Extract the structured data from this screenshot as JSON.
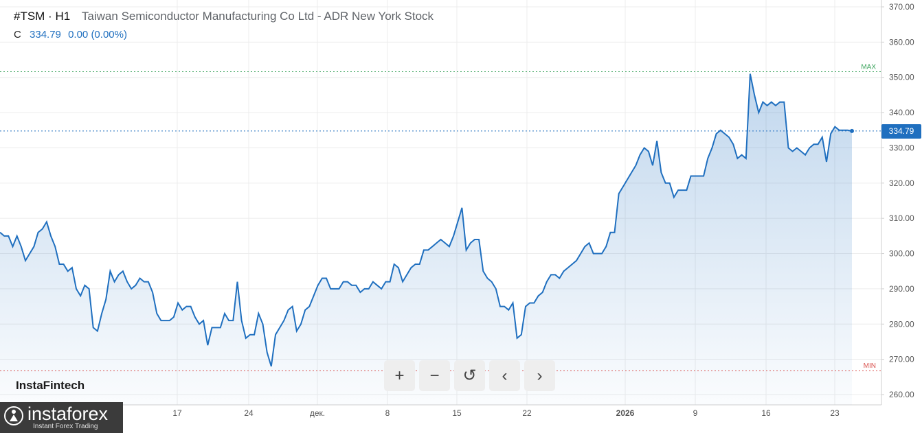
{
  "header": {
    "symbol": "#TSM · H1",
    "name": "Taiwan Semiconductor Manufacturing Co Ltd - ADR New York Stock",
    "close_label": "C",
    "close_value": "334.79",
    "change": "0.00 (0.00%)"
  },
  "brand": "InstaFintech",
  "watermark": {
    "name": "instaforex",
    "tagline": "Instant Forex Trading"
  },
  "controls": {
    "zoom_in": "+",
    "zoom_out": "−",
    "reset": "↺",
    "prev": "‹",
    "next": "›"
  },
  "colors": {
    "line": "#1f6fbf",
    "max": "#3aa35b",
    "min": "#d9534f",
    "grid": "#ececec"
  },
  "chart_data": {
    "type": "area",
    "ylim": [
      260,
      370
    ],
    "yticks": [
      "260.00",
      "270.00",
      "280.00",
      "290.00",
      "300.00",
      "310.00",
      "320.00",
      "330.00",
      "340.00",
      "350.00",
      "360.00",
      "370.00"
    ],
    "xticks": [
      "17",
      "24",
      "дек.",
      "8",
      "15",
      "22",
      "2026",
      "9",
      "16",
      "23"
    ],
    "max_label": "MAX",
    "min_label": "MIN",
    "max_value": 351.6,
    "min_value": 266.8,
    "last_value": 334.79,
    "last_label": "334.79",
    "series": [
      {
        "values": [
          306,
          305,
          305,
          302,
          305,
          302,
          298,
          300,
          302,
          306,
          307,
          309,
          305,
          302,
          297,
          297,
          295,
          296,
          290,
          288,
          291,
          290,
          279,
          278,
          283,
          287,
          295,
          292,
          294,
          295,
          292,
          290,
          291,
          293,
          292,
          292,
          289,
          283,
          281,
          281,
          281,
          282,
          286,
          284,
          285,
          285,
          282,
          280,
          281,
          274,
          279,
          279,
          279,
          283,
          281,
          281,
          292,
          281,
          276,
          277,
          277,
          283,
          280,
          272,
          268,
          277,
          279,
          281,
          284,
          285,
          278,
          280,
          284,
          285,
          288,
          291,
          293,
          293,
          290,
          290,
          290,
          292,
          292,
          291,
          291,
          289,
          290,
          290,
          292,
          291,
          290,
          292,
          292,
          297,
          296,
          292,
          294,
          296,
          297,
          297,
          301,
          301,
          302,
          303,
          304,
          303,
          302,
          305,
          309,
          313,
          301,
          303,
          304,
          304,
          295,
          293,
          292,
          290,
          285,
          285,
          284,
          286,
          276,
          277,
          285,
          286,
          286,
          288,
          289,
          292,
          294,
          294,
          293,
          295,
          296,
          297,
          298,
          300,
          302,
          303,
          300,
          300,
          300,
          302,
          306,
          306,
          317,
          319,
          321,
          323,
          325,
          328,
          330,
          329,
          325,
          332,
          323,
          320,
          320,
          316,
          318,
          318,
          318,
          322,
          322,
          322,
          322,
          327,
          330,
          334,
          335,
          334,
          333,
          331,
          327,
          328,
          327,
          351,
          345,
          340,
          343,
          342,
          343,
          342,
          343,
          343,
          330,
          329,
          330,
          329,
          328,
          330,
          331,
          331,
          333,
          326,
          334,
          336,
          335,
          335,
          335,
          334.79
        ]
      }
    ]
  }
}
